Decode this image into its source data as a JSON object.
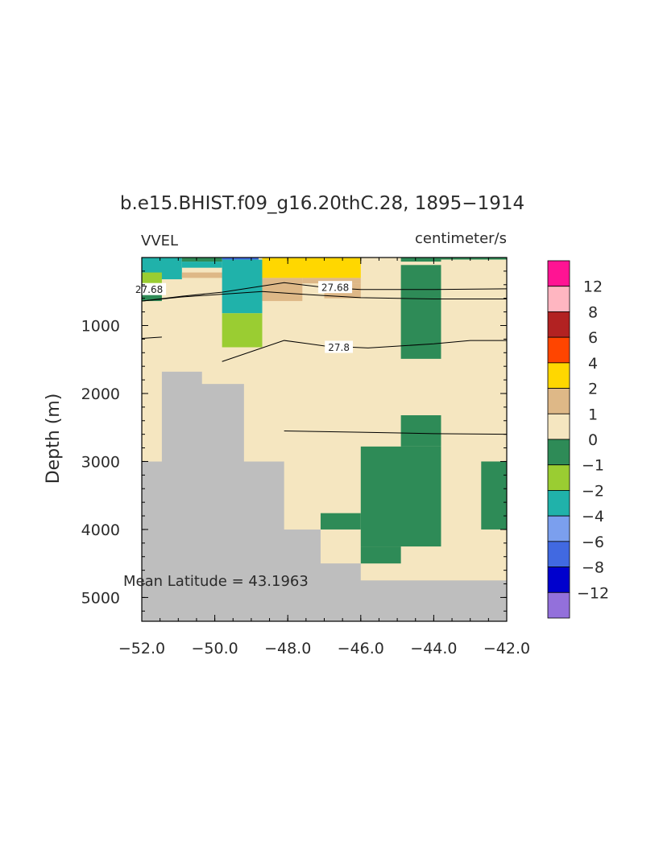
{
  "chart_data": {
    "type": "heatmap",
    "title": "b.e15.BHIST.f09_g16.20thC.28, 1895−1914",
    "left_label": "VVEL",
    "right_label": "centimeter/s",
    "ylabel": "Depth (m)",
    "annotation": "Mean Latitude = 43.1963",
    "xlim": [
      -52.0,
      -42.0
    ],
    "ylim": [
      0,
      5350
    ],
    "y_reversed": true,
    "x_ticks": [
      {
        "value": -52.0,
        "label": "−52.0"
      },
      {
        "value": -50.0,
        "label": "−50.0"
      },
      {
        "value": -48.0,
        "label": "−48.0"
      },
      {
        "value": -46.0,
        "label": "−46.0"
      },
      {
        "value": -44.0,
        "label": "−44.0"
      },
      {
        "value": -42.0,
        "label": "−42.0"
      }
    ],
    "y_ticks": [
      {
        "value": 1000,
        "label": "1000"
      },
      {
        "value": 2000,
        "label": "2000"
      },
      {
        "value": 3000,
        "label": "3000"
      },
      {
        "value": 4000,
        "label": "4000"
      },
      {
        "value": 5000,
        "label": "5000"
      }
    ],
    "colorbar": {
      "colors": [
        "#ff1493",
        "#ffb6c1",
        "#b22222",
        "#ff4500",
        "#ffd700",
        "#deb887",
        "#f5e6c0",
        "#2e8b57",
        "#9acd32",
        "#20b2aa",
        "#7b9fee",
        "#4169e1",
        "#0000cd",
        "#9370db"
      ],
      "labels": [
        "12",
        "8",
        "6",
        "4",
        "2",
        "1",
        "0",
        "−1",
        "−2",
        "−4",
        "−6",
        "−8",
        "−12"
      ]
    },
    "background_fill": "#f5e6c0",
    "land_color": "#bebebe",
    "cells": [
      {
        "x0": -52.0,
        "x1": -50.9,
        "d0": 0,
        "d1": 320,
        "color": "#20b2aa"
      },
      {
        "x0": -52.0,
        "x1": -51.45,
        "d0": 220,
        "d1": 380,
        "color": "#9acd32"
      },
      {
        "x0": -52.0,
        "x1": -51.45,
        "d0": 380,
        "d1": 640,
        "color": "#2e8b57"
      },
      {
        "x0": -50.9,
        "x1": -49.8,
        "d0": 0,
        "d1": 60,
        "color": "#2e8b57"
      },
      {
        "x0": -50.9,
        "x1": -49.8,
        "d0": 60,
        "d1": 150,
        "color": "#20b2aa"
      },
      {
        "x0": -49.8,
        "x1": -48.8,
        "d0": 0,
        "d1": 30,
        "color": "#4169e1"
      },
      {
        "x0": -50.9,
        "x1": -49.8,
        "d0": 220,
        "d1": 300,
        "color": "#deb887"
      },
      {
        "x0": -49.8,
        "x1": -48.7,
        "d0": 220,
        "d1": 300,
        "color": "#deb887"
      },
      {
        "x0": -49.8,
        "x1": -48.7,
        "d0": 30,
        "d1": 820,
        "color": "#20b2aa"
      },
      {
        "x0": -49.8,
        "x1": -48.7,
        "d0": 820,
        "d1": 1320,
        "color": "#9acd32"
      },
      {
        "x0": -48.7,
        "x1": -46.0,
        "d0": 0,
        "d1": 300,
        "color": "#ffd700"
      },
      {
        "x0": -48.7,
        "x1": -47.6,
        "d0": 300,
        "d1": 640,
        "color": "#deb887"
      },
      {
        "x0": -47.6,
        "x1": -46.0,
        "d0": 300,
        "d1": 380,
        "color": "#deb887"
      },
      {
        "x0": -47.0,
        "x1": -46.0,
        "d0": 380,
        "d1": 600,
        "color": "#deb887"
      },
      {
        "x0": -44.9,
        "x1": -43.8,
        "d0": 0,
        "d1": 60,
        "color": "#2e8b57"
      },
      {
        "x0": -43.8,
        "x1": -42.0,
        "d0": 0,
        "d1": 30,
        "color": "#2e8b57"
      },
      {
        "x0": -44.9,
        "x1": -43.8,
        "d0": 110,
        "d1": 1490,
        "color": "#2e8b57"
      },
      {
        "x0": -44.9,
        "x1": -43.8,
        "d0": 2320,
        "d1": 2780,
        "color": "#2e8b57"
      },
      {
        "x0": -46.0,
        "x1": -43.8,
        "d0": 2780,
        "d1": 4250,
        "color": "#2e8b57"
      },
      {
        "x0": -47.1,
        "x1": -46.0,
        "d0": 3760,
        "d1": 4000,
        "color": "#2e8b57"
      },
      {
        "x0": -46.0,
        "x1": -44.9,
        "d0": 4250,
        "d1": 4500,
        "color": "#2e8b57"
      },
      {
        "x0": -42.7,
        "x1": -42.0,
        "d0": 3000,
        "d1": 4000,
        "color": "#2e8b57"
      }
    ],
    "land": [
      [
        [
          -52.0,
          3000
        ],
        [
          -51.45,
          3000
        ],
        [
          -51.45,
          1680
        ],
        [
          -50.35,
          1680
        ],
        [
          -50.35,
          1860
        ],
        [
          -49.2,
          1860
        ],
        [
          -49.2,
          3000
        ],
        [
          -48.1,
          3000
        ],
        [
          -48.1,
          4000
        ],
        [
          -47.1,
          4000
        ],
        [
          -47.1,
          4500
        ],
        [
          -46.0,
          4500
        ],
        [
          -46.0,
          4750
        ],
        [
          -42.0,
          4750
        ],
        [
          -42.0,
          5350
        ],
        [
          -52.0,
          5350
        ]
      ]
    ],
    "contours": [
      {
        "label": "27.68",
        "label_at": [
          -51.8,
          470
        ],
        "label_at_2": [
          -46.7,
          440
        ],
        "points": [
          [
            -52.0,
            640
          ],
          [
            -50.9,
            570
          ],
          [
            -49.8,
            510
          ],
          [
            -48.1,
            370
          ],
          [
            -47.0,
            440
          ],
          [
            -46.0,
            470
          ],
          [
            -44.0,
            470
          ],
          [
            -42.0,
            460
          ]
        ]
      },
      {
        "points": [
          [
            -52.0,
            640
          ],
          [
            -50.9,
            580
          ],
          [
            -49.8,
            540
          ],
          [
            -48.7,
            500
          ],
          [
            -47.6,
            540
          ],
          [
            -46.0,
            590
          ],
          [
            -44.0,
            610
          ],
          [
            -42.0,
            610
          ]
        ]
      },
      {
        "label": "27.8",
        "label_at": [
          -46.6,
          1320
        ],
        "points": [
          [
            -49.8,
            1530
          ],
          [
            -48.1,
            1220
          ],
          [
            -47.0,
            1300
          ],
          [
            -45.8,
            1330
          ],
          [
            -44.0,
            1270
          ],
          [
            -43.0,
            1220
          ],
          [
            -42.0,
            1220
          ]
        ]
      },
      {
        "points": [
          [
            -52.0,
            1190
          ],
          [
            -51.45,
            1170
          ]
        ]
      },
      {
        "points": [
          [
            -48.1,
            2550
          ],
          [
            -46.0,
            2570
          ],
          [
            -44.0,
            2590
          ],
          [
            -42.0,
            2600
          ]
        ]
      }
    ]
  }
}
